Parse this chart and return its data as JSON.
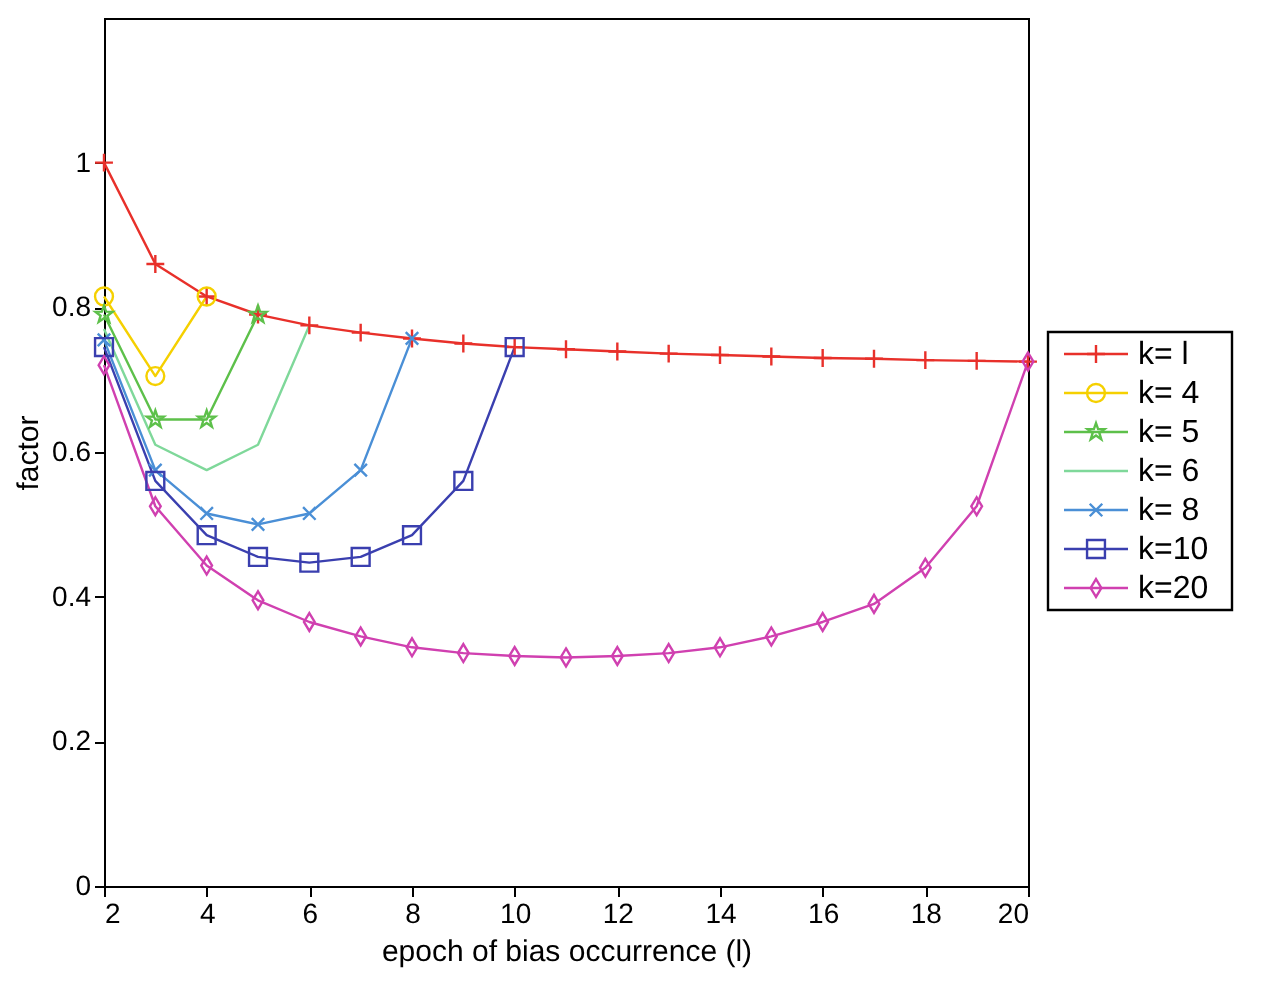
{
  "chart_data": {
    "type": "line",
    "xlabel": "epoch of bias occurrence (l)",
    "ylabel": "factor",
    "xlim": [
      2,
      20
    ],
    "ylim": [
      0,
      1.2
    ],
    "xticks": [
      2,
      4,
      6,
      8,
      10,
      12,
      14,
      16,
      18,
      20
    ],
    "yticks": [
      0,
      0.2,
      0.4,
      0.6,
      0.8,
      1
    ],
    "grid": false,
    "legend": "right",
    "line_style": "solid",
    "series": [
      {
        "name": "k= l",
        "color": "#e8302a",
        "marker": "plus",
        "x": [
          2,
          3,
          4,
          5,
          6,
          7,
          8,
          9,
          10,
          11,
          12,
          13,
          14,
          15,
          16,
          17,
          18,
          19,
          20
        ],
        "values": [
          1.0,
          0.86,
          0.815,
          0.79,
          0.775,
          0.765,
          0.757,
          0.75,
          0.745,
          0.742,
          0.739,
          0.736,
          0.734,
          0.732,
          0.73,
          0.729,
          0.727,
          0.726,
          0.725
        ]
      },
      {
        "name": "k= 4",
        "color": "#f5d000",
        "marker": "circle",
        "x": [
          2,
          3,
          4
        ],
        "values": [
          0.815,
          0.705,
          0.815
        ]
      },
      {
        "name": "k= 5",
        "color": "#5dc04a",
        "marker": "star",
        "x": [
          2,
          3,
          4,
          5
        ],
        "values": [
          0.79,
          0.645,
          0.645,
          0.79
        ]
      },
      {
        "name": "k= 6",
        "color": "#7fd89a",
        "marker": "none",
        "x": [
          2,
          3,
          4,
          5,
          6
        ],
        "values": [
          0.77,
          0.61,
          0.575,
          0.61,
          0.775
        ]
      },
      {
        "name": "k= 8",
        "color": "#4a8fd6",
        "marker": "cross",
        "x": [
          2,
          3,
          4,
          5,
          6,
          7,
          8
        ],
        "values": [
          0.755,
          0.575,
          0.515,
          0.5,
          0.515,
          0.575,
          0.757
        ]
      },
      {
        "name": "k=10",
        "color": "#3a3faf",
        "marker": "square",
        "x": [
          2,
          3,
          4,
          5,
          6,
          7,
          8,
          9,
          10
        ],
        "values": [
          0.745,
          0.56,
          0.485,
          0.455,
          0.447,
          0.455,
          0.485,
          0.56,
          0.745
        ]
      },
      {
        "name": "k=20",
        "color": "#d040b0",
        "marker": "diamond",
        "x": [
          2,
          3,
          4,
          5,
          6,
          7,
          8,
          9,
          10,
          11,
          12,
          13,
          14,
          15,
          16,
          17,
          18,
          19,
          20
        ],
        "values": [
          0.72,
          0.525,
          0.443,
          0.395,
          0.365,
          0.345,
          0.33,
          0.322,
          0.318,
          0.316,
          0.318,
          0.322,
          0.33,
          0.345,
          0.365,
          0.39,
          0.44,
          0.525,
          0.725
        ]
      }
    ]
  }
}
